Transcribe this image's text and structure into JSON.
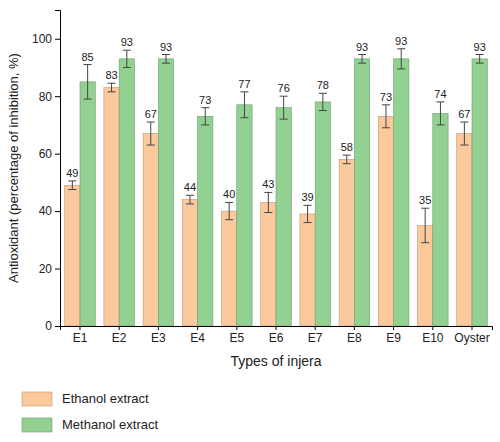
{
  "chart_data": {
    "type": "bar",
    "x_label": "Types of injera",
    "y_label": "Antioxidant (percentage of inhibition, %)",
    "categories": [
      "E1",
      "E2",
      "E3",
      "E4",
      "E5",
      "E6",
      "E7",
      "E8",
      "E9",
      "E10",
      "Oyster"
    ],
    "series": [
      {
        "name": "Ethanol extract",
        "color": "#fbc99b",
        "values": [
          49,
          83,
          67,
          44,
          40,
          43,
          39,
          58,
          73,
          35,
          67
        ],
        "errors": [
          1.5,
          1.5,
          4,
          1.5,
          3,
          3.5,
          3,
          1.5,
          4,
          6,
          4
        ]
      },
      {
        "name": "Methanol extract",
        "color": "#93d193",
        "values": [
          85,
          93,
          93,
          73,
          77,
          76,
          78,
          93,
          93,
          74,
          93
        ],
        "errors": [
          6,
          3,
          1.5,
          3,
          4.5,
          4,
          3,
          1.5,
          3.5,
          4,
          1.5
        ]
      }
    ],
    "ylim": [
      0,
      110
    ],
    "yticks": [
      0,
      20,
      40,
      60,
      80,
      100
    ],
    "data_labels": true,
    "legend": "bottom"
  }
}
